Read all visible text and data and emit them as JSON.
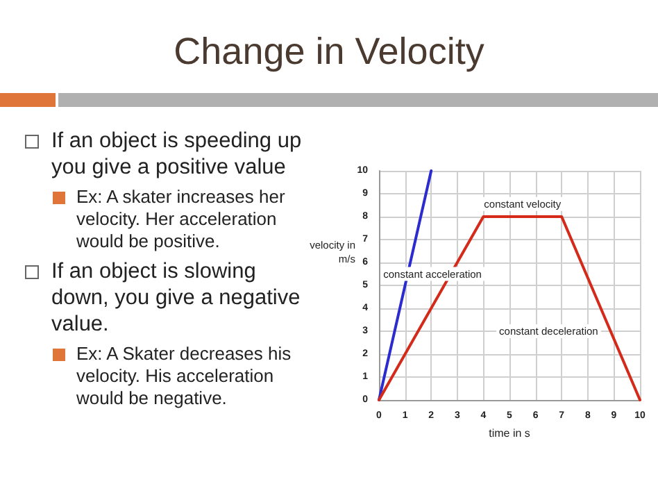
{
  "chart_data": {
    "type": "line",
    "title": "Change in Velocity",
    "xlabel": "time in s",
    "ylabel": "velocity in m/s",
    "series": [
      {
        "color": "#2b2bd0",
        "x": [
          0,
          2
        ],
        "values": [
          0,
          10
        ]
      },
      {
        "color": "#d42a1a",
        "x": [
          0,
          4,
          7,
          10
        ],
        "values": [
          0,
          8,
          8,
          0
        ]
      }
    ],
    "xlim": [
      0,
      10
    ],
    "ylim": [
      0,
      10
    ],
    "xticks": [
      0,
      1,
      2,
      3,
      4,
      5,
      6,
      7,
      8,
      9,
      10
    ],
    "yticks": [
      0,
      1,
      2,
      3,
      4,
      5,
      6,
      7,
      8,
      9,
      10
    ],
    "grid": true,
    "marker": "none",
    "line_style": "solid",
    "annotations": [
      "If an object is speeding up you give a positive value",
      "Ex: A skater increases her velocity. Her acceleration would be positive.",
      "If an object is slowing down, you give a negative value.",
      "Ex: A Skater decreases his velocity. His acceleration would be negative.",
      "constant velocity",
      "constant acceleration",
      "constant deceleration"
    ]
  }
}
